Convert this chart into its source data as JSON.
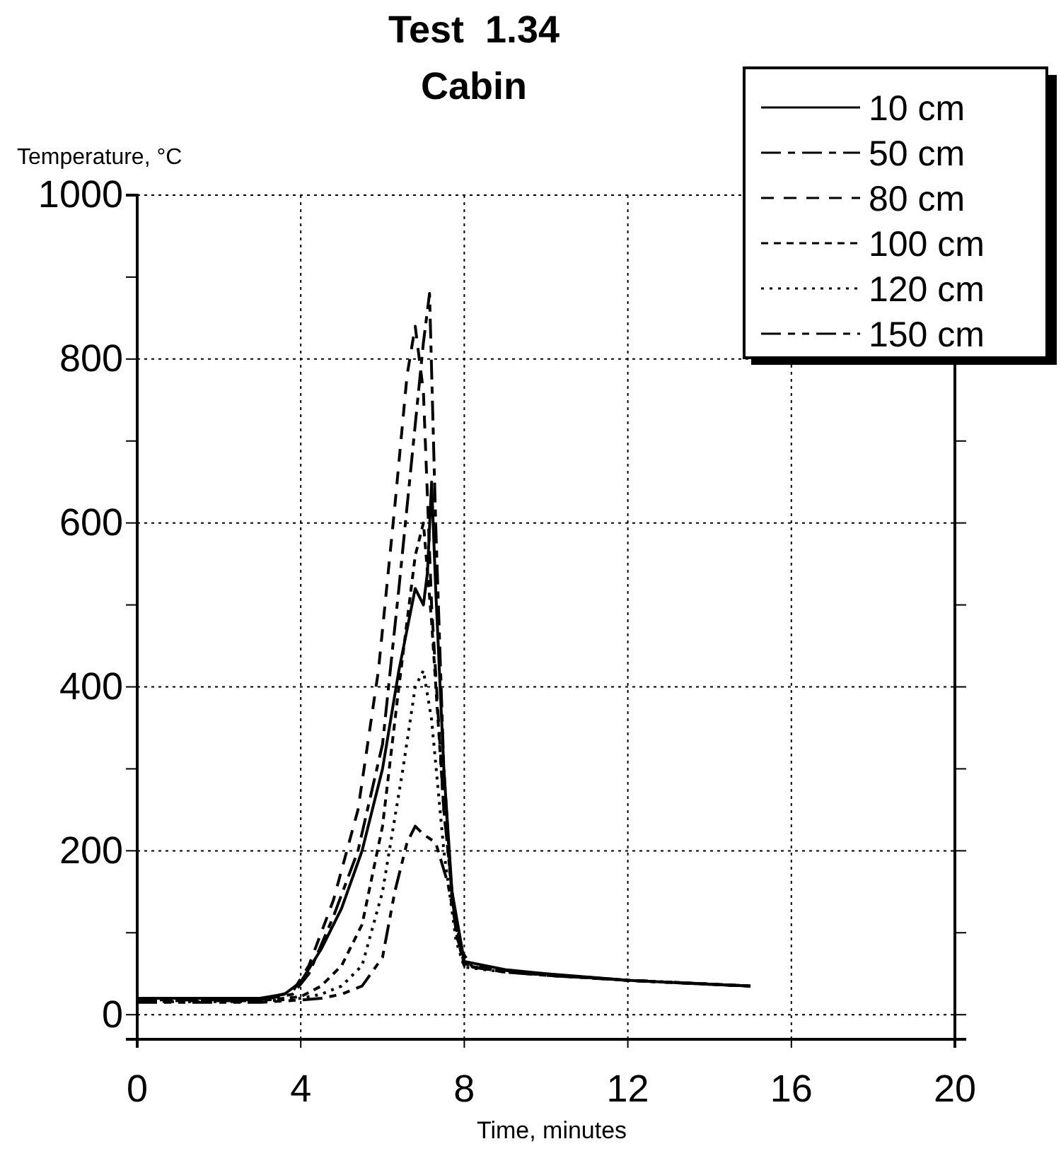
{
  "chart_data": {
    "type": "line",
    "title": "Test  1.34",
    "subtitle": "Cabin",
    "ylabel": "Temperature, °C",
    "xlabel": "Time, minutes",
    "xlim": [
      0,
      20
    ],
    "xticks": [
      0,
      4,
      8,
      12,
      16,
      20
    ],
    "ylim": [
      -30,
      1000
    ],
    "yticks": [
      0,
      {
        "value": 100,
        "label": null
      },
      200,
      {
        "value": 300,
        "label": null
      },
      400,
      {
        "value": 500,
        "label": null
      },
      600,
      {
        "value": 700,
        "label": null
      },
      800,
      {
        "value": 900,
        "label": null
      },
      1000
    ],
    "grid": true,
    "legend": "top right",
    "series": [
      {
        "name": "10 cm",
        "color": "#000000",
        "line_style": "solid",
        "x": [
          0,
          3,
          3.6,
          4,
          4.5,
          5,
          5.5,
          6,
          6.4,
          6.8,
          7,
          7.1,
          7.2,
          7.3,
          7.5,
          7.7,
          8,
          9,
          10,
          12,
          14,
          15
        ],
        "values": [
          20,
          20,
          25,
          40,
          80,
          130,
          200,
          300,
          420,
          520,
          500,
          540,
          650,
          520,
          300,
          150,
          65,
          55,
          50,
          42,
          37,
          35
        ]
      },
      {
        "name": "50 cm",
        "color": "#000000",
        "line_style": "dashed",
        "x": [
          0,
          3,
          3.8,
          4.2,
          4.8,
          5.4,
          6,
          6.4,
          6.8,
          7,
          7.15,
          7.3,
          7.5,
          7.7,
          8,
          9,
          10,
          12,
          14,
          15
        ],
        "values": [
          18,
          18,
          25,
          50,
          120,
          200,
          330,
          520,
          720,
          820,
          880,
          600,
          300,
          140,
          60,
          52,
          48,
          42,
          37,
          35
        ]
      },
      {
        "name": "80 cm",
        "color": "#000000",
        "line_style": "dashed",
        "x": [
          0,
          3,
          3.8,
          4.2,
          4.8,
          5.4,
          5.9,
          6.3,
          6.6,
          6.8,
          7,
          7.2,
          7.5,
          7.8,
          8,
          9,
          10,
          12,
          15
        ],
        "values": [
          18,
          18,
          28,
          60,
          140,
          250,
          420,
          620,
          780,
          840,
          760,
          500,
          250,
          100,
          62,
          54,
          48,
          42,
          35
        ]
      },
      {
        "name": "100 cm",
        "color": "#000000",
        "line_style": "dashed",
        "x": [
          0,
          3,
          4,
          4.5,
          5,
          5.5,
          6,
          6.4,
          6.8,
          7,
          7.2,
          7.5,
          7.8,
          8,
          9,
          12,
          15
        ],
        "values": [
          17,
          17,
          22,
          35,
          60,
          110,
          230,
          400,
          560,
          600,
          480,
          250,
          100,
          60,
          53,
          42,
          35
        ]
      },
      {
        "name": "120 cm",
        "color": "#000000",
        "line_style": "dotted",
        "x": [
          0,
          3,
          4,
          4.5,
          5,
          5.5,
          6,
          6.5,
          6.8,
          7,
          7.2,
          7.5,
          7.8,
          8,
          9,
          12,
          15
        ],
        "values": [
          16,
          16,
          20,
          25,
          35,
          60,
          150,
          300,
          400,
          420,
          360,
          200,
          90,
          58,
          52,
          42,
          35
        ]
      },
      {
        "name": "150 cm",
        "color": "#000000",
        "line_style": "dashed",
        "x": [
          0,
          3,
          4,
          4.5,
          5,
          5.5,
          6,
          6.3,
          6.6,
          6.8,
          7,
          7.3,
          7.6,
          7.9,
          8.2,
          9,
          12,
          15
        ],
        "values": [
          15,
          15,
          18,
          20,
          25,
          35,
          70,
          150,
          210,
          230,
          220,
          210,
          160,
          80,
          58,
          52,
          42,
          35
        ]
      }
    ]
  }
}
